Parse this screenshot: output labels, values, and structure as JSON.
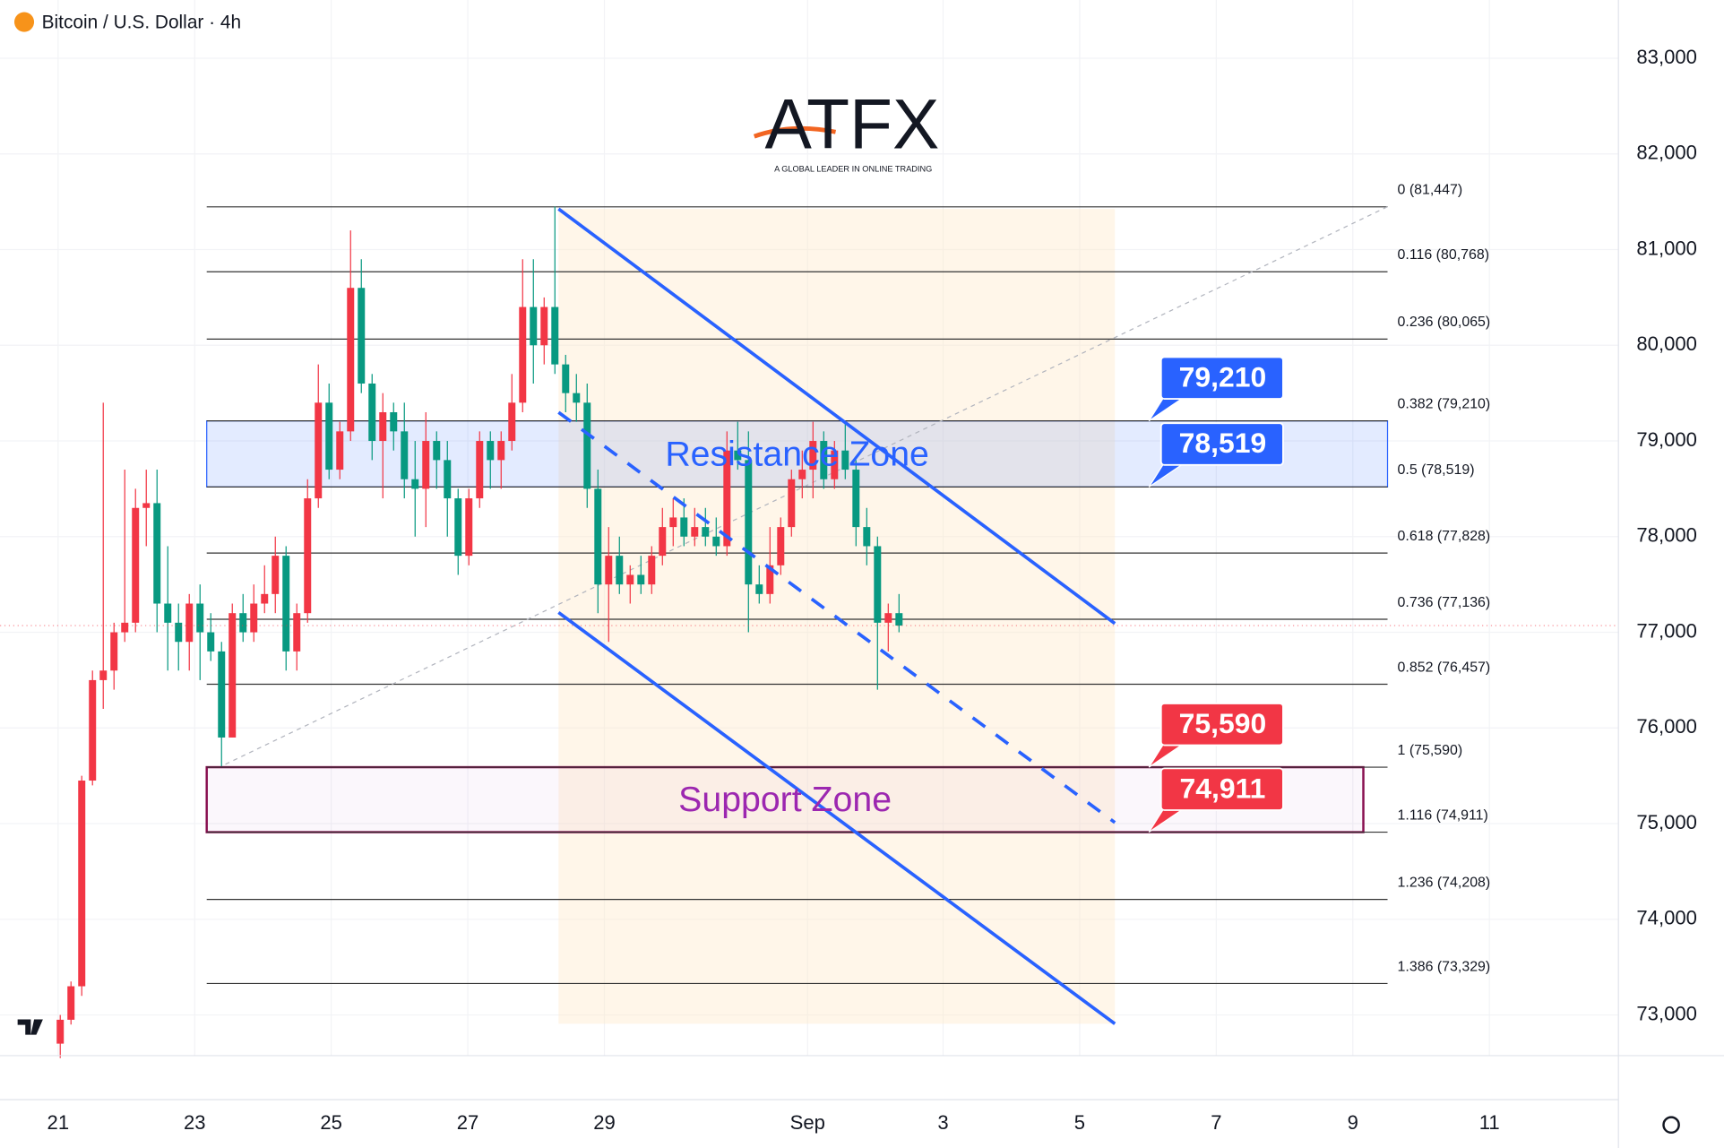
{
  "chart_data": {
    "type": "candlestick",
    "title": "Bitcoin / U.S. Dollar · 4h",
    "logo": {
      "name": "ATFX",
      "tagline": "A GLOBAL LEADER IN ONLINE TRADING"
    },
    "up_color": "#f23645",
    "down_color": "#089981",
    "open": [
      72700,
      72950,
      73300,
      75450,
      76500,
      76600,
      77000,
      77100,
      78300,
      78350,
      77300,
      77100,
      76900,
      77300,
      77000,
      76800,
      75900,
      77200,
      77000,
      77300,
      77400,
      77800,
      76800,
      77200,
      78400,
      79400,
      78700,
      79100,
      80600,
      79600,
      79000,
      79300,
      79100,
      78600,
      78500,
      79000,
      78800,
      78400,
      77800,
      78400,
      79000,
      78800,
      79000,
      79400,
      80400,
      80000,
      80400,
      79800,
      79500,
      79400,
      78500,
      77500,
      77800,
      77500,
      77600,
      77500,
      77800,
      78100,
      78200,
      78000,
      78100,
      78000,
      77900,
      78900,
      78800,
      77500,
      77400,
      77700,
      78100,
      78600,
      78700,
      79000,
      78600,
      78900,
      78700,
      78100,
      77900,
      77100,
      77200
    ],
    "high": [
      73000,
      73350,
      75500,
      76600,
      79400,
      77100,
      78700,
      78500,
      78700,
      78700,
      77900,
      77300,
      77400,
      77500,
      77200,
      76900,
      77300,
      77400,
      77500,
      77700,
      78000,
      77900,
      77300,
      78600,
      79800,
      79600,
      79200,
      81200,
      80900,
      79700,
      79500,
      79400,
      79400,
      79000,
      79300,
      79100,
      79000,
      78500,
      78500,
      79100,
      79100,
      79100,
      79700,
      80900,
      80900,
      80500,
      81450,
      79900,
      79700,
      79600,
      78700,
      78100,
      78000,
      77700,
      77800,
      77900,
      78300,
      78400,
      78400,
      78300,
      78300,
      78200,
      79100,
      79200,
      79100,
      77700,
      78100,
      78200,
      78700,
      78900,
      79200,
      79100,
      79000,
      79200,
      78800,
      78300,
      78000,
      77300,
      77400
    ],
    "low": [
      72550,
      72900,
      73200,
      75400,
      76200,
      76400,
      76900,
      77000,
      77900,
      77000,
      76600,
      76600,
      76600,
      76500,
      76700,
      75600,
      75900,
      76900,
      76900,
      77200,
      77200,
      76600,
      76600,
      77100,
      78300,
      78600,
      78600,
      79000,
      79500,
      78800,
      78400,
      78900,
      78400,
      78000,
      78100,
      78500,
      78000,
      77600,
      77700,
      78300,
      78500,
      78500,
      78900,
      79300,
      79600,
      79800,
      79700,
      79300,
      79200,
      78300,
      77200,
      76900,
      77400,
      77300,
      77400,
      77400,
      77700,
      77900,
      77900,
      77900,
      77900,
      77800,
      77800,
      78700,
      77000,
      77300,
      77300,
      77600,
      78000,
      78400,
      78400,
      78500,
      78500,
      78600,
      77900,
      77700,
      76400,
      76800,
      77000
    ],
    "close": [
      72950,
      73300,
      75450,
      76500,
      76600,
      77000,
      77100,
      78300,
      78350,
      77300,
      77100,
      76900,
      77300,
      77000,
      76800,
      75900,
      77200,
      77000,
      77300,
      77400,
      77800,
      76800,
      77200,
      78400,
      79400,
      78700,
      79100,
      80600,
      79600,
      79000,
      79300,
      79100,
      78600,
      78500,
      79000,
      78800,
      78400,
      77800,
      78400,
      79000,
      78800,
      79000,
      79400,
      80400,
      80000,
      80400,
      79800,
      79500,
      79400,
      78500,
      77500,
      77800,
      77500,
      77600,
      77500,
      77800,
      78100,
      78200,
      78000,
      78100,
      78000,
      77900,
      78900,
      78800,
      77500,
      77400,
      77700,
      78100,
      78600,
      78700,
      79000,
      78600,
      78900,
      78700,
      78100,
      77900,
      77100,
      77200,
      77070
    ],
    "xlim": [
      -5.6,
      144.9
    ],
    "xticks": [
      {
        "value": -0.2,
        "label": "21"
      },
      {
        "value": 12.5,
        "label": "23"
      },
      {
        "value": 25.2,
        "label": "25"
      },
      {
        "value": 37.9,
        "label": "27"
      },
      {
        "value": 50.6,
        "label": "29"
      },
      {
        "value": 69.5,
        "label": "Sep"
      },
      {
        "value": 82.1,
        "label": "3"
      },
      {
        "value": 94.8,
        "label": "5"
      },
      {
        "value": 107.5,
        "label": "7"
      },
      {
        "value": 120.2,
        "label": "9"
      },
      {
        "value": 132.9,
        "label": "11"
      }
    ],
    "ylim": [
      72575,
      83609
    ],
    "yticks": [
      {
        "value": 73000,
        "label": "73,000"
      },
      {
        "value": 74000,
        "label": "74,000"
      },
      {
        "value": 75000,
        "label": "75,000"
      },
      {
        "value": 76000,
        "label": "76,000"
      },
      {
        "value": 77000,
        "label": "77,000"
      },
      {
        "value": 78000,
        "label": "78,000"
      },
      {
        "value": 79000,
        "label": "79,000"
      },
      {
        "value": 80000,
        "label": "80,000"
      },
      {
        "value": 81000,
        "label": "81,000"
      },
      {
        "value": 82000,
        "label": "82,000"
      },
      {
        "value": 83000,
        "label": "83,000"
      }
    ],
    "grid": true,
    "fib_levels": [
      {
        "value": 81447,
        "label": "0 (81,447)"
      },
      {
        "value": 80768,
        "label": "0.116 (80,768)"
      },
      {
        "value": 80065,
        "label": "0.236 (80,065)"
      },
      {
        "value": 79210,
        "label": "0.382 (79,210)"
      },
      {
        "value": 78519,
        "label": "0.5 (78,519)"
      },
      {
        "value": 77828,
        "label": "0.618 (77,828)"
      },
      {
        "value": 77136,
        "label": "0.736 (77,136)"
      },
      {
        "value": 76457,
        "label": "0.852 (76,457)"
      },
      {
        "value": 75590,
        "label": "1 (75,590)"
      },
      {
        "value": 74911,
        "label": "1.116 (74,911)"
      },
      {
        "value": 74208,
        "label": "1.236 (74,208)"
      },
      {
        "value": 73329,
        "label": "1.386 (73,329)"
      }
    ],
    "zones": [
      {
        "name": "Resistance Zone",
        "low": 78519,
        "high": 79210,
        "color": "#2962ff"
      },
      {
        "name": "Support Zone",
        "low": 74911,
        "high": 75590,
        "color": "#9c27b0"
      }
    ],
    "callouts": [
      {
        "value": 79210,
        "label": "79,210",
        "color": "#2962ff"
      },
      {
        "value": 78519,
        "label": "78,519",
        "color": "#2962ff"
      },
      {
        "value": 75590,
        "label": "75,590",
        "color": "#f23645"
      },
      {
        "value": 74911,
        "label": "74,911",
        "color": "#f23645"
      }
    ]
  }
}
